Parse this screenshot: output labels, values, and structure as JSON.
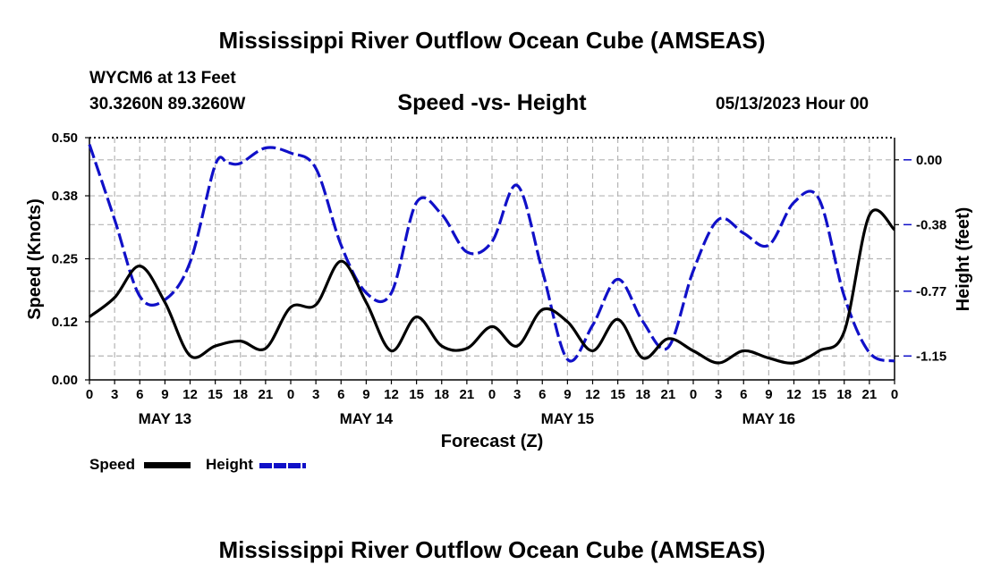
{
  "page": {
    "title": "Mississippi River Outflow Ocean Cube (AMSEAS)",
    "title_repeat": "Mississippi River Outflow Ocean Cube (AMSEAS)",
    "station": "WYCM6 at 13 Feet",
    "coords": "30.3260N  89.3260W",
    "subtitle": "Speed -vs- Height",
    "datetime": "05/13/2023 Hour 00"
  },
  "legend": {
    "speed_label": "Speed",
    "height_label": "Height"
  },
  "chart_data": {
    "type": "line",
    "xlabel": "Forecast (Z)",
    "ylabel_left": "Speed (Knots)",
    "ylabel_right": "Height (feet)",
    "x_hours_range": [
      0,
      96
    ],
    "x_tick_labels": [
      "0",
      "3",
      "6",
      "9",
      "12",
      "15",
      "18",
      "21",
      "0",
      "3",
      "6",
      "9",
      "12",
      "15",
      "18",
      "21",
      "0",
      "3",
      "6",
      "9",
      "12",
      "15",
      "18",
      "21",
      "0",
      "3",
      "6",
      "9",
      "12",
      "15",
      "18",
      "21",
      "0"
    ],
    "day_labels": [
      {
        "label": "MAY 13",
        "hour": 9
      },
      {
        "label": "MAY 14",
        "hour": 33
      },
      {
        "label": "MAY 15",
        "hour": 57
      },
      {
        "label": "MAY 16",
        "hour": 81
      }
    ],
    "ylim_left": [
      0,
      0.5
    ],
    "yticks_left": [
      "0.00",
      "0.12",
      "0.25",
      "0.38",
      "0.50"
    ],
    "ylim_right": [
      -1.29,
      0.13
    ],
    "yticks_right": [
      "0.00",
      "-0.38",
      "-0.77",
      "-1.15"
    ],
    "colors": {
      "speed": "#000000",
      "height": "#1010c8",
      "grid": "#b4b4b4"
    },
    "series": [
      {
        "name": "Speed",
        "hours": [
          0,
          3,
          6,
          9,
          12,
          15,
          18,
          21,
          24,
          27,
          30,
          33,
          36,
          39,
          42,
          45,
          48,
          51,
          54,
          57,
          60,
          63,
          66,
          69,
          72,
          75,
          78,
          81,
          84,
          87,
          90,
          93,
          96
        ],
        "values": [
          0.13,
          0.17,
          0.235,
          0.16,
          0.05,
          0.07,
          0.08,
          0.065,
          0.15,
          0.155,
          0.245,
          0.16,
          0.06,
          0.13,
          0.07,
          0.065,
          0.11,
          0.07,
          0.145,
          0.12,
          0.06,
          0.125,
          0.045,
          0.085,
          0.06,
          0.035,
          0.06,
          0.045,
          0.035,
          0.06,
          0.1,
          0.34,
          0.31
        ]
      },
      {
        "name": "Height",
        "hours": [
          0,
          3,
          6,
          9,
          12,
          15,
          16.5,
          18,
          21,
          24,
          27,
          30,
          33,
          36,
          39,
          42,
          45,
          48,
          51,
          54,
          57,
          60,
          63,
          66,
          69,
          72,
          75,
          78,
          81,
          84,
          87,
          90,
          93,
          96
        ],
        "values": [
          0.09,
          -0.35,
          -0.8,
          -0.82,
          -0.6,
          -0.03,
          -0.02,
          -0.02,
          0.07,
          0.04,
          -0.05,
          -0.5,
          -0.78,
          -0.78,
          -0.25,
          -0.32,
          -0.54,
          -0.48,
          -0.15,
          -0.65,
          -1.17,
          -0.97,
          -0.7,
          -0.95,
          -1.1,
          -0.65,
          -0.35,
          -0.43,
          -0.5,
          -0.25,
          -0.23,
          -0.8,
          -1.13,
          -1.18
        ]
      }
    ]
  }
}
